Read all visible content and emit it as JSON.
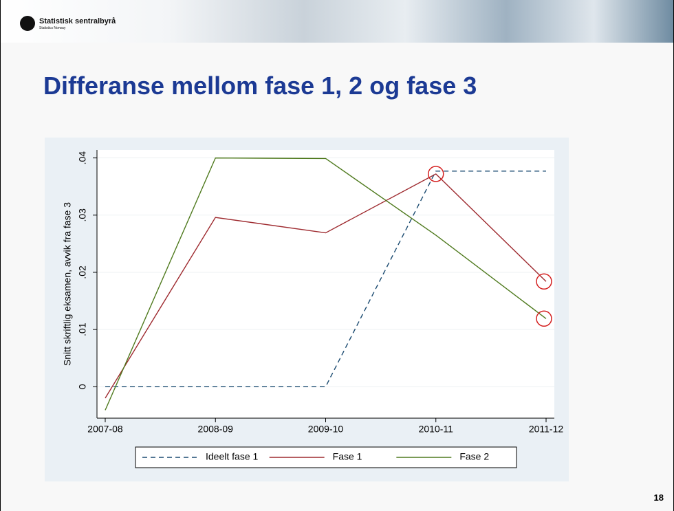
{
  "logo": {
    "name": "Statistisk sentralbyrå",
    "subtitle": "Statistics Norway"
  },
  "slide_title": "Differanse mellom fase 1, 2 og fase 3",
  "page_number": "18",
  "chart_data": {
    "type": "line",
    "y_label": "Snitt skriftlig eksamen, avvik fra fase 3",
    "categories": [
      "2007-08",
      "2008-09",
      "2009-10",
      "2010-11",
      "2011-12"
    ],
    "series": [
      {
        "name": "Ideelt fase 1",
        "color": "#1a4a70",
        "dashed": true,
        "values": [
          0,
          0,
          0,
          0.0377,
          0.0377
        ]
      },
      {
        "name": "Fase 1",
        "color": "#9e2a2f",
        "dashed": false,
        "values": [
          -0.002,
          0.0296,
          0.0269,
          0.0372,
          0.0184
        ]
      },
      {
        "name": "Fase 2",
        "color": "#4f7a1e",
        "dashed": false,
        "values": [
          -0.0041,
          0.04,
          0.0399,
          0.0265,
          0.0119
        ]
      }
    ],
    "highlighted": [
      {
        "series": 1,
        "index": 3
      },
      {
        "series": 1,
        "index": 4
      },
      {
        "series": 2,
        "index": 4
      }
    ],
    "highlight_color": "#d42020",
    "ylim": [
      -0.0055,
      0.0414
    ],
    "yticks": [
      0,
      {
        "value": 0.01,
        "label": ".01"
      },
      {
        "value": 0.02,
        "label": ".02"
      },
      {
        "value": 0.03,
        "label": ".03"
      },
      {
        "value": 0.04,
        "label": ".04"
      }
    ],
    "grid": true,
    "legend": "bottom"
  }
}
